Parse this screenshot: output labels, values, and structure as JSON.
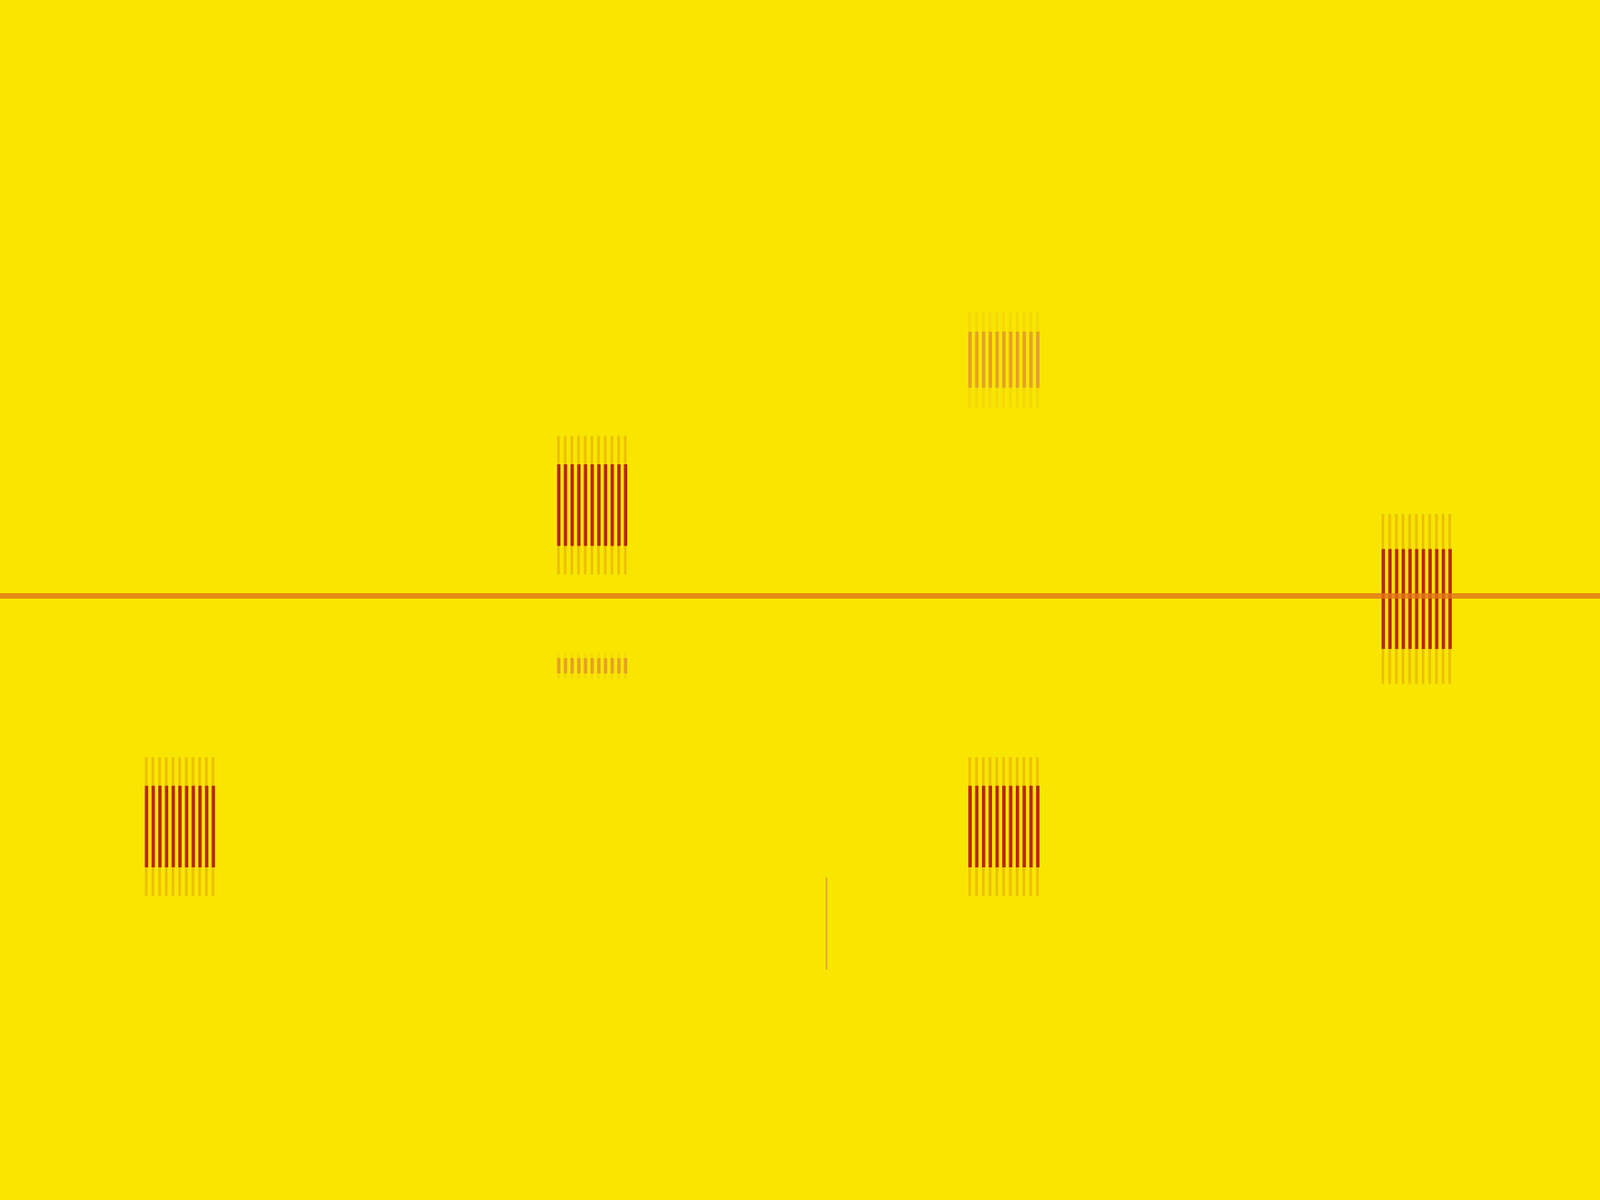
{
  "chart_data": {
    "type": "spectrogram",
    "tick_labels": false,
    "xlim": [
      0,
      1568
    ],
    "ylim": [
      0,
      1176
    ],
    "background": "#f9e600",
    "line": {
      "y": 584,
      "x": [
        0,
        1568
      ],
      "color": "#e2741c"
    },
    "bursts": [
      {
        "x": [
          142,
          214
        ],
        "y": [
          770,
          850
        ],
        "stripes": 11,
        "color": "#b3140c"
      },
      {
        "x": [
          546,
          618
        ],
        "y": [
          455,
          535
        ],
        "stripes": 11,
        "color": "#b3140c"
      },
      {
        "x": [
          949,
          1022
        ],
        "y": [
          770,
          850
        ],
        "stripes": 11,
        "color": "#b3140c"
      },
      {
        "x": [
          1354,
          1426
        ],
        "y": [
          538,
          636
        ],
        "stripes": 11,
        "color": "#b3140c"
      },
      {
        "x": [
          546,
          618
        ],
        "y": [
          645,
          660
        ],
        "stripes": 11,
        "color": "#e39a2a"
      },
      {
        "x": [
          949,
          1022
        ],
        "y": [
          325,
          380
        ],
        "stripes": 11,
        "color": "#e39a2a"
      }
    ],
    "traces": [
      {
        "x": 810,
        "y": [
          860,
          950
        ],
        "color": "#dca036"
      }
    ]
  }
}
